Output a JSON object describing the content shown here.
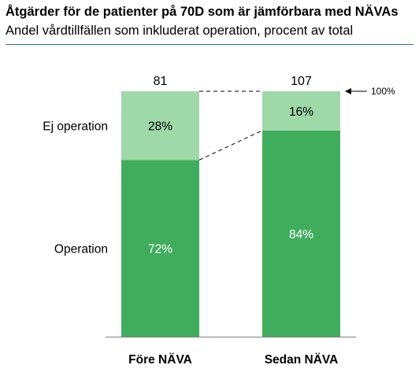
{
  "title": "Åtgärder för de patienter på 70D som är jämförbara med NÄVAs",
  "subtitle": "Andel vårdtillfällen som inkluderat operation, procent av total",
  "chart_data": {
    "type": "bar",
    "stacked": true,
    "normalized": true,
    "categories": [
      "Före NÄVA",
      "Sedan NÄVA"
    ],
    "totals": [
      81,
      107
    ],
    "series": [
      {
        "name": "Operation",
        "values": [
          72,
          84
        ],
        "labels": [
          "72%",
          "84%"
        ],
        "color": "#40ad5e"
      },
      {
        "name": "Ej operation",
        "values": [
          28,
          16
        ],
        "labels": [
          "28%",
          "16%"
        ],
        "color": "#9fd8a9"
      }
    ],
    "ylim": [
      0,
      100
    ],
    "annotation": "100%",
    "grid": false
  }
}
